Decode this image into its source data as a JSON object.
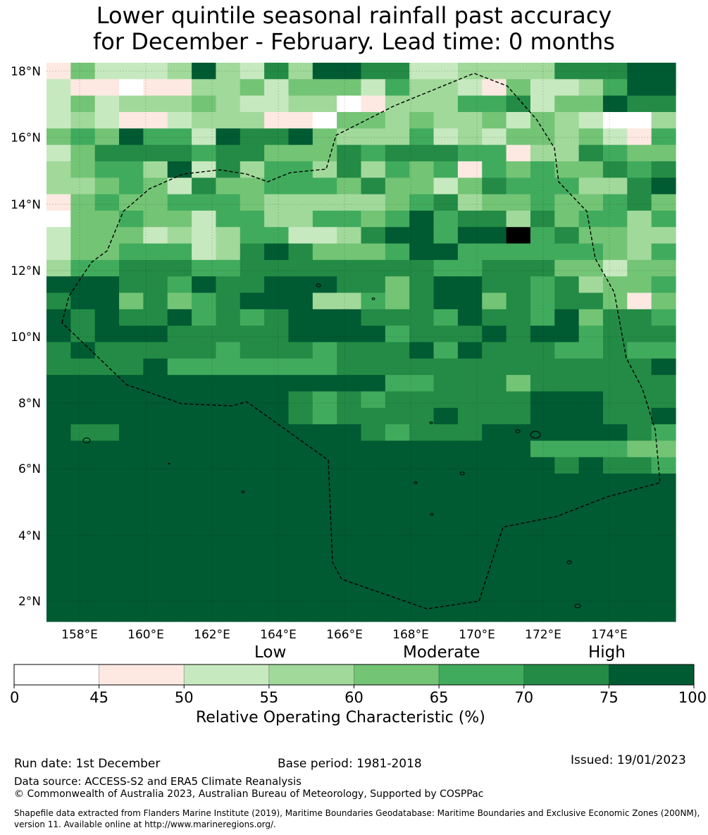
{
  "title": {
    "line1": "Lower quintile seasonal rainfall past accuracy",
    "line2": "for December - February. Lead time: 0 months"
  },
  "map": {
    "lat_labels": [
      "18°N",
      "16°N",
      "14°N",
      "12°N",
      "10°N",
      "8°N",
      "6°N",
      "4°N",
      "2°N"
    ],
    "lon_labels": [
      "158°E",
      "160°E",
      "162°E",
      "164°E",
      "166°E",
      "168°E",
      "170°E",
      "172°E",
      "174°E"
    ],
    "grid_overlay": true,
    "eez_boundary": "dashed black",
    "palette": [
      "#ffffff",
      "#fde9e1",
      "#c7e9c0",
      "#a1d99b",
      "#74c476",
      "#41ab5d",
      "#238b45",
      "#005a32"
    ],
    "cells": [
      "14222373263776622333366677",
      "21101133424442533214223577",
      "24233343223301333556244766",
      "23211233311044343342432003",
      "45475527667433352324434215",
      "24666656644465666551336544",
      "34553726355363545154544656",
      "33454264455546442465553367",
      "14544555433333456344544564",
      "04454425533554575663645535",
      "24442323552236775778564433",
      "24455523676444577555555435",
      "35566655666666665566644244",
      "77766576677766467766563445",
      "67746456777335467746566414",
      "76766756567776665766574665",
      "76777666667777566676775666",
      "67666665666566675766655655",
      "66667555555566666666666667",
      "77777777777777556664666666",
      "77777777776565666666777666",
      "77777777776566667666777667",
      "76677777777776566677777765",
      "77777777777777777777555544",
      "77777777777777777777767665",
      "77777777777777777777777777",
      "77777777777777777777777777",
      "77777777777777777777777777",
      "77777777777777777777777777",
      "77777777777777777777777777",
      "77777777777777777777777777",
      "77777777777777777777777777",
      "77777777777777777777777777",
      "77777777777777777777777777"
    ]
  },
  "legend": {
    "categories": [
      "Low",
      "Moderate",
      "High"
    ],
    "ticks": [
      "0",
      "45",
      "50",
      "55",
      "60",
      "65",
      "70",
      "75",
      "100"
    ],
    "axis_label": "Relative Operating Characteristic (%)"
  },
  "footer": {
    "run_date": "Run date: 1st December",
    "base_period": "Base period: 1981-2018",
    "issued": "Issued: 19/01/2023",
    "data_source": "Data source: ACCESS-S2 and ERA5 Climate Reanalysis",
    "copyright": "© Commonwealth of Australia 2023, Australian Bureau of Meteorology, Supported by COSPPac",
    "shapefile_line1": "Shapefile data extracted from Flanders Marine Institute (2019), Maritime Boundaries Geodatabase: Maritime Boundaries and Exclusive Economic Zones (200NM),",
    "shapefile_line2": "version 11. Available online at http://www.marineregions.org/."
  }
}
